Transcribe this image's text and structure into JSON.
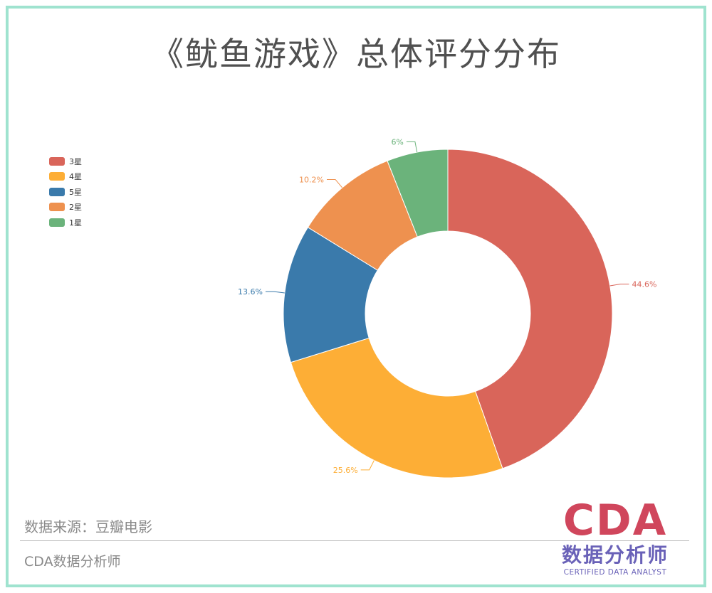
{
  "title": "《鱿鱼游戏》总体评分分布",
  "chart_data": {
    "type": "pie",
    "donut": true,
    "title": "《鱿鱼游戏》总体评分分布",
    "slices": [
      {
        "label": "3星",
        "value": 44.6,
        "value_label": "44.6%",
        "color": "#d9655a"
      },
      {
        "label": "4星",
        "value": 25.6,
        "value_label": "25.6%",
        "color": "#fdae36"
      },
      {
        "label": "5星",
        "value": 13.6,
        "value_label": "13.6%",
        "color": "#3a7aab"
      },
      {
        "label": "2星",
        "value": 10.2,
        "value_label": "10.2%",
        "color": "#ee914f"
      },
      {
        "label": "1星",
        "value": 6,
        "value_label": "6%",
        "color": "#6bb37b"
      }
    ],
    "legend_position": "top-left"
  },
  "source": "数据来源：豆瓣电影",
  "footer_brand": "CDA数据分析师",
  "logo": {
    "main": "CDA",
    "cn": "数据分析师",
    "en": "CERTIFIED DATA ANALYST"
  }
}
